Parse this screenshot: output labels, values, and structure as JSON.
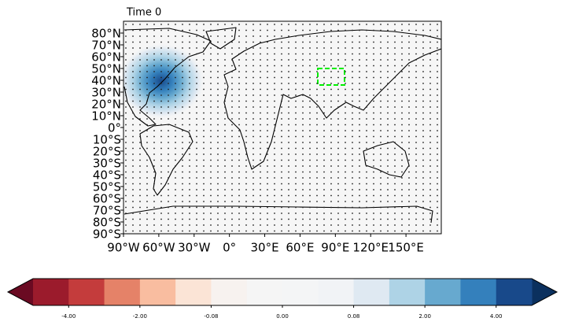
{
  "chart_data": {
    "type": "map",
    "title": "Time 0",
    "xlim": [
      -90,
      180
    ],
    "ylim": [
      -90,
      90
    ],
    "xticks": [
      {
        "value": -90,
        "label": "90°W"
      },
      {
        "value": -60,
        "label": "60°W"
      },
      {
        "value": -30,
        "label": "30°W"
      },
      {
        "value": 0,
        "label": "0°"
      },
      {
        "value": 30,
        "label": "30°E"
      },
      {
        "value": 60,
        "label": "60°E"
      },
      {
        "value": 90,
        "label": "90°E"
      },
      {
        "value": 120,
        "label": "120°E"
      },
      {
        "value": 150,
        "label": "150°E"
      }
    ],
    "yticks": [
      {
        "value": 80,
        "label": "80°N"
      },
      {
        "value": 70,
        "label": "70°N"
      },
      {
        "value": 60,
        "label": "60°N"
      },
      {
        "value": 50,
        "label": "50°N"
      },
      {
        "value": 40,
        "label": "40°N"
      },
      {
        "value": 30,
        "label": "30°N"
      },
      {
        "value": 20,
        "label": "20°N"
      },
      {
        "value": 10,
        "label": "10°N"
      },
      {
        "value": 0,
        "label": "0°"
      },
      {
        "value": -10,
        "label": "10°S"
      },
      {
        "value": -20,
        "label": "20°S"
      },
      {
        "value": -30,
        "label": "30°S"
      },
      {
        "value": -40,
        "label": "40°S"
      },
      {
        "value": -50,
        "label": "50°S"
      },
      {
        "value": -60,
        "label": "60°S"
      },
      {
        "value": -70,
        "label": "70°S"
      },
      {
        "value": -80,
        "label": "80°S"
      },
      {
        "value": -90,
        "label": "90°S"
      }
    ],
    "colorbar": {
      "colors": [
        "#9b1b2c",
        "#c43c3c",
        "#e58268",
        "#f9bda0",
        "#fbe4d6",
        "#f7f2ef",
        "#f5f5f5",
        "#f4f5f6",
        "#f1f3f6",
        "#dfe9f2",
        "#aed3e6",
        "#67a9cf",
        "#3480bc",
        "#18498a"
      ],
      "extend_colors": [
        "#6a0a22",
        "#0b305e"
      ],
      "ticks": [
        {
          "value": -4,
          "label": "-4.00"
        },
        {
          "value": -2,
          "label": "-2.00"
        },
        {
          "value": -0.08,
          "label": "-0.08"
        },
        {
          "value": 0,
          "label": "0.00"
        },
        {
          "value": 0.08,
          "label": "0.08"
        },
        {
          "value": 2,
          "label": "2.00"
        },
        {
          "value": 4,
          "label": "4.00"
        }
      ]
    }
  }
}
